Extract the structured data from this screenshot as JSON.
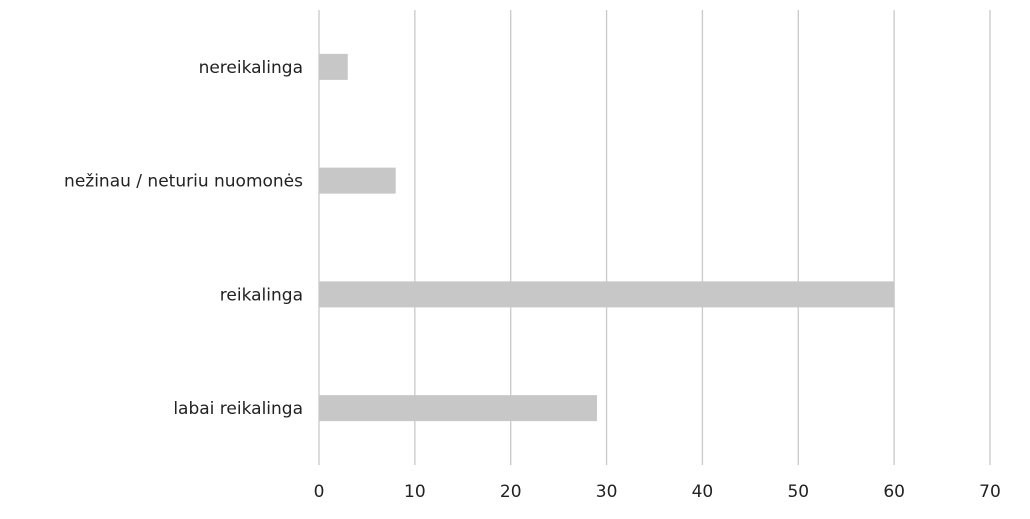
{
  "chart_data": {
    "type": "bar",
    "orientation": "horizontal",
    "categories": [
      "nereikalinga",
      "nežinau / neturiu nuomonės",
      "reikalinga",
      "labai reikalinga"
    ],
    "values": [
      3,
      8,
      60,
      29
    ],
    "xlim": [
      0,
      70
    ],
    "xticks": [
      0,
      10,
      20,
      30,
      40,
      50,
      60,
      70
    ],
    "xtick_labels": [
      "0",
      "10",
      "20",
      "30",
      "40",
      "50",
      "60",
      "70"
    ],
    "grid": "vertical",
    "legend": "none",
    "title": "",
    "xlabel": "",
    "ylabel": "",
    "colors": {
      "bar": "#c7c7c7",
      "grid": "#c9c9c9",
      "text": "#222222",
      "background": "#ffffff"
    }
  }
}
